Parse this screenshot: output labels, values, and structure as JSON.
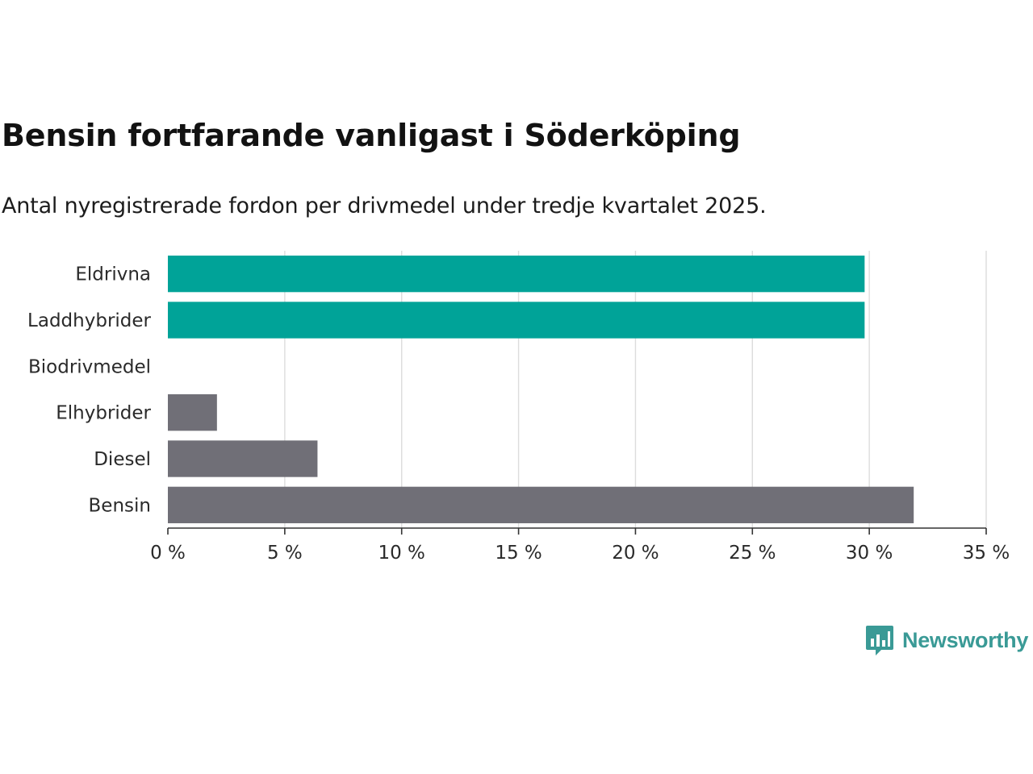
{
  "title": "Bensin fortfarande vanligast i Söderköping",
  "subtitle": "Antal nyregistrerade fordon per drivmedel under tredje kvartalet 2025.",
  "brand": {
    "name": "Newsworthy",
    "color": "#3a9a96",
    "icon": "bar-chart-speech-icon"
  },
  "chart_data": {
    "type": "bar",
    "orientation": "horizontal",
    "categories": [
      "Eldrivna",
      "Laddhybrider",
      "Biodrivmedel",
      "Elhybrider",
      "Diesel",
      "Bensin"
    ],
    "values": [
      29.8,
      29.8,
      0,
      2.1,
      6.4,
      31.9
    ],
    "colors": [
      "#00a398",
      "#00a398",
      "#706f77",
      "#706f77",
      "#706f77",
      "#706f77"
    ],
    "xlim": [
      0,
      35
    ],
    "xticks": [
      0,
      5,
      10,
      15,
      20,
      25,
      30,
      35
    ],
    "xtick_labels": [
      "0 %",
      "5 %",
      "10 %",
      "15 %",
      "20 %",
      "25 %",
      "30 %",
      "35 %"
    ],
    "grid": true,
    "xlabel": "",
    "ylabel": ""
  }
}
